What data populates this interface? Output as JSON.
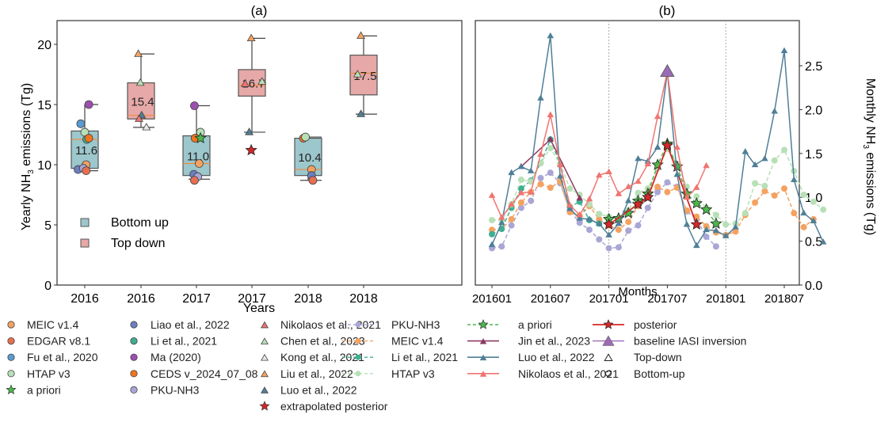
{
  "chart_data": [
    {
      "type": "box",
      "panel_label": "(a)",
      "xlabel": "Years",
      "ylabel": "Yearly NH3 emissions (Tg)",
      "ylim": [
        0,
        22
      ],
      "yticks": [
        0,
        5,
        10,
        15,
        20
      ],
      "categories": [
        "2016",
        "2016",
        "2017",
        "2017",
        "2018",
        "2018"
      ],
      "legend": {
        "placement": "center-left",
        "entries": [
          {
            "label": "Bottom up",
            "color": "#9cc7cc"
          },
          {
            "label": "Top down",
            "color": "#e7a8a8"
          }
        ]
      },
      "boxes": [
        {
          "category": "2016",
          "group": "Bottom up",
          "q1": 9.7,
          "median": 12.1,
          "q3": 12.8,
          "whisker_low": 9.5,
          "whisker_high": 15.0,
          "mean_label": "11.6"
        },
        {
          "category": "2016",
          "group": "Top down",
          "q1": 13.8,
          "median": 14.1,
          "q3": 16.8,
          "whisker_low": 13.1,
          "whisker_high": 19.2,
          "mean_label": "15.4"
        },
        {
          "category": "2017",
          "group": "Bottom up",
          "q1": 9.1,
          "median": 10.1,
          "q3": 12.4,
          "whisker_low": 8.8,
          "whisker_high": 14.9,
          "mean_label": "11.0"
        },
        {
          "category": "2017",
          "group": "Top down",
          "q1": 15.7,
          "median": 16.6,
          "q3": 17.9,
          "whisker_low": 12.7,
          "whisker_high": 20.5,
          "mean_label": "16.7"
        },
        {
          "category": "2018",
          "group": "Bottom up",
          "q1": 9.1,
          "median": 9.6,
          "q3": 12.2,
          "whisker_low": 8.7,
          "whisker_high": 12.3,
          "mean_label": "10.4"
        },
        {
          "category": "2018",
          "group": "Top down",
          "q1": 15.8,
          "median": 17.6,
          "q3": 19.1,
          "whisker_low": 14.2,
          "whisker_high": 20.7,
          "mean_label": "17.5"
        }
      ],
      "points": [
        {
          "box": 0,
          "source": "Fu et al., 2020",
          "value": 13.4,
          "dx": -0.3
        },
        {
          "box": 0,
          "source": "Ma (2020)",
          "value": 15.0,
          "dx": 0.3
        },
        {
          "box": 0,
          "source": "HTAP v3",
          "value": 12.7,
          "dx": 0.0
        },
        {
          "box": 0,
          "source": "Li et al., 2021",
          "value": 12.1,
          "dx": 0.15
        },
        {
          "box": 0,
          "source": "CEDS v_2024_07_08",
          "value": 12.2,
          "dx": 0.3
        },
        {
          "box": 0,
          "source": "MEIC v1.4",
          "value": 10.0,
          "dx": 0.1
        },
        {
          "box": 0,
          "source": "Liao et al., 2022",
          "value": 9.6,
          "dx": -0.5
        },
        {
          "box": 0,
          "source": "PKU-NH3",
          "value": 9.7,
          "dx": -0.1
        },
        {
          "box": 0,
          "source": "EDGAR v8.1",
          "value": 9.5,
          "dx": 0.1
        },
        {
          "box": 1,
          "source": "Liu et al., 2022",
          "value": 19.2,
          "dx": -0.2
        },
        {
          "box": 1,
          "source": "Chen et al., 2023",
          "value": 16.8,
          "dx": -0.05
        },
        {
          "box": 1,
          "source": "Luo et al., 2022",
          "value": 14.1,
          "dx": 0.05
        },
        {
          "box": 1,
          "source": "Nikolaos et al., 2021",
          "value": 13.8,
          "dx": -0.15
        },
        {
          "box": 1,
          "source": "Kong et al., 2021",
          "value": 13.1,
          "dx": 0.4
        },
        {
          "box": 2,
          "source": "Ma (2020)",
          "value": 14.9,
          "dx": -0.15
        },
        {
          "box": 2,
          "source": "HTAP v3",
          "value": 12.7,
          "dx": 0.3
        },
        {
          "box": 2,
          "source": "CEDS v_2024_07_08",
          "value": 12.2,
          "dx": -0.1
        },
        {
          "box": 2,
          "source": "a priori",
          "value": 12.2,
          "dx": 0.3
        },
        {
          "box": 2,
          "source": "MEIC v1.4",
          "value": 10.1,
          "dx": 0.2
        },
        {
          "box": 2,
          "source": "Liao et al., 2022",
          "value": 9.2,
          "dx": -0.2
        },
        {
          "box": 2,
          "source": "PKU-NH3",
          "value": 9.0,
          "dx": 0.1
        },
        {
          "box": 2,
          "source": "EDGAR v8.1",
          "value": 8.7,
          "dx": -0.15
        },
        {
          "box": 3,
          "source": "Liu et al., 2022",
          "value": 20.5,
          "dx": -0.05
        },
        {
          "box": 3,
          "source": "Nikolaos et al., 2021",
          "value": 16.7,
          "dx": -0.5
        },
        {
          "box": 3,
          "source": "Chen et al., 2023",
          "value": 16.9,
          "dx": 0.75
        },
        {
          "box": 3,
          "source": "Luo et al., 2022",
          "value": 12.7,
          "dx": -0.2
        },
        {
          "box": 3,
          "source": "extrapolated posterior",
          "value": 11.2,
          "dx": -0.05
        },
        {
          "box": 4,
          "source": "CEDS v_2024_07_08",
          "value": 12.2,
          "dx": -0.35
        },
        {
          "box": 4,
          "source": "HTAP v3",
          "value": 12.3,
          "dx": -0.2
        },
        {
          "box": 4,
          "source": "MEIC v1.4",
          "value": 9.6,
          "dx": 0.25
        },
        {
          "box": 4,
          "source": "Liao et al., 2022",
          "value": 9.1,
          "dx": 0.25
        },
        {
          "box": 4,
          "source": "EDGAR v8.1",
          "value": 8.7,
          "dx": 0.35
        },
        {
          "box": 5,
          "source": "Liu et al., 2022",
          "value": 20.7,
          "dx": -0.2
        },
        {
          "box": 5,
          "source": "Chen et al., 2023",
          "value": 17.5,
          "dx": -0.45
        },
        {
          "box": 5,
          "source": "Luo et al., 2022",
          "value": 14.2,
          "dx": -0.2
        }
      ]
    },
    {
      "type": "line",
      "panel_label": "(b)",
      "xlabel": "Months",
      "ylabel": "Monthly NH3 emissions (Tg)",
      "y_axis_side": "right",
      "ylim": [
        0,
        2.95
      ],
      "yticks": [
        "0.0",
        "0.5",
        "1.0",
        "1.5",
        "2.0",
        "2.5"
      ],
      "xticks": [
        "201601",
        "201607",
        "201701",
        "201707",
        "201801",
        "201807"
      ],
      "month_index_range": [
        0,
        35
      ],
      "vlines_at": [
        12,
        24
      ],
      "series": [
        {
          "name": "PKU-NH3",
          "style": "dashed-circle",
          "color": "#a9a6d6",
          "start": 0,
          "values": [
            0.42,
            0.44,
            0.68,
            0.88,
            0.96,
            1.22,
            1.28,
            1.16,
            0.85,
            0.71,
            0.63,
            0.52,
            0.42,
            0.43,
            0.62,
            0.68,
            0.88,
            1.06,
            1.17,
            1.12,
            0.84,
            0.75,
            0.55,
            0.44
          ]
        },
        {
          "name": "MEIC v1.4",
          "style": "dashed-circle",
          "color": "#f4a261",
          "start": 0,
          "values": [
            0.63,
            0.64,
            0.75,
            0.94,
            1.06,
            1.15,
            1.11,
            1.18,
            0.83,
            0.79,
            0.9,
            0.75,
            0.68,
            0.63,
            0.72,
            0.9,
            1.0,
            1.12,
            1.06,
            1.11,
            0.85,
            0.78,
            0.67,
            0.6,
            0.57,
            0.61,
            0.8,
            0.94,
            1.07,
            1.02,
            1.1,
            0.82,
            0.66,
            0.75
          ]
        },
        {
          "name": "Li et al., 2021",
          "style": "dashed-circle",
          "color": "#3fae91",
          "start": 0,
          "values": [
            0.58,
            0.64,
            0.88,
            1.1,
            1.19,
            1.39,
            1.66,
            1.38,
            0.89,
            0.95,
            0.74,
            0.7
          ]
        },
        {
          "name": "HTAP v3",
          "style": "dashed-circle",
          "color": "#b7e0b7",
          "start": 0,
          "values": [
            0.74,
            0.74,
            0.92,
            1.2,
            1.18,
            1.39,
            1.56,
            1.38,
            1.1,
            1.03,
            0.92,
            0.81,
            0.78,
            0.76,
            0.85,
            1.05,
            1.1,
            1.33,
            1.55,
            1.38,
            1.12,
            1.01,
            0.88,
            0.8,
            0.69,
            0.7,
            0.82,
            1.16,
            1.13,
            1.42,
            1.54,
            1.3,
            1.03,
            0.95,
            0.86
          ]
        },
        {
          "name": "a priori",
          "style": "dashed-star",
          "color": "#4cb84c",
          "start": 12,
          "values": [
            0.75,
            0.76,
            0.82,
            0.96,
            1.04,
            1.37,
            1.61,
            1.35,
            1.04,
            0.93,
            0.86,
            0.7
          ]
        },
        {
          "name": "posterior",
          "style": "solid-star",
          "color": "#d62728",
          "start": 12,
          "values": [
            0.69,
            null,
            null,
            0.92,
            1.0,
            null,
            1.59,
            null,
            null,
            0.69
          ]
        },
        {
          "name": "Jin et al., 2023",
          "style": "solid-triangle",
          "color": "#8c3a62",
          "start": 0,
          "values": [
            null,
            null,
            null,
            1.35,
            null,
            null,
            1.66,
            null,
            null,
            0.99
          ]
        },
        {
          "name": "Luo et al., 2022",
          "style": "solid-triangle",
          "color": "#4f7f97",
          "start": 0,
          "values": [
            0.46,
            0.71,
            1.28,
            1.35,
            1.3,
            2.13,
            2.84,
            1.24,
            0.87,
            0.76,
            0.75,
            0.7,
            0.57,
            0.7,
            0.96,
            1.44,
            1.41,
            1.57,
            2.43,
            1.26,
            0.69,
            0.45,
            0.63,
            0.62,
            0.56,
            0.66,
            1.52,
            1.37,
            1.44,
            1.98,
            2.67,
            1.2,
            0.82,
            0.73,
            0.49
          ]
        },
        {
          "name": "Nikolaos et al., 2021",
          "style": "solid-triangle",
          "color": "#f07470",
          "start": 0,
          "values": [
            1.02,
            0.77,
            0.92,
            1.05,
            1.06,
            1.49,
            1.94,
            1.37,
            0.91,
            0.8,
            0.98,
            1.25,
            1.29,
            1.04,
            1.12,
            1.18,
            1.38,
            1.92,
            2.43,
            1.57,
            1.0,
            1.11,
            1.36
          ]
        },
        {
          "name": "baseline IASI inversion",
          "style": "triangle-marker",
          "color": "#9b6bb5",
          "start": 18,
          "values": [
            2.43
          ]
        }
      ],
      "legend_placement": "below"
    }
  ],
  "legend": {
    "col1": [
      {
        "label": "MEIC v1.4",
        "marker": "circle",
        "color": "#f4a261"
      },
      {
        "label": "EDGAR v8.1",
        "marker": "circle",
        "color": "#e76f51"
      },
      {
        "label": "Fu et al., 2020",
        "marker": "circle",
        "color": "#5b9bd0"
      },
      {
        "label": "HTAP v3",
        "marker": "circle",
        "color": "#b7e0b7"
      },
      {
        "label": "a priori",
        "marker": "star",
        "color": "#4cb84c"
      }
    ],
    "col2": [
      {
        "label": "Liao et al., 2022",
        "marker": "circle",
        "color": "#6a7fbf"
      },
      {
        "label": "Li et al., 2021",
        "marker": "circle",
        "color": "#3fae91"
      },
      {
        "label": "Ma (2020)",
        "marker": "circle",
        "color": "#9d4fb0"
      },
      {
        "label": "CEDS v_2024_07_08",
        "marker": "circle",
        "color": "#f0741e"
      },
      {
        "label": "PKU-NH3",
        "marker": "circle",
        "color": "#a9a6d6"
      }
    ],
    "col3": [
      {
        "label": "Nikolaos  et al., 2021",
        "marker": "triangle",
        "color": "#f07470"
      },
      {
        "label": "Chen et al., 2023",
        "marker": "triangle",
        "color": "#b7e0b7"
      },
      {
        "label": "Kong  et al., 2021",
        "marker": "triangle",
        "color": "#e8e8e8"
      },
      {
        "label": "Liu et al., 2022",
        "marker": "triangle",
        "color": "#f4a261"
      },
      {
        "label": "Luo et al., 2022",
        "marker": "triangle",
        "color": "#4f7f97"
      },
      {
        "label": "extrapolated posterior",
        "marker": "star",
        "color": "#d62728"
      }
    ],
    "col4": [
      {
        "label": "PKU-NH3",
        "marker": "dashed-circle",
        "color": "#a9a6d6"
      },
      {
        "label": "MEIC v1.4",
        "marker": "dashed-circle",
        "color": "#f4a261"
      },
      {
        "label": "Li et al., 2021",
        "marker": "dashed-circle",
        "color": "#3fae91"
      },
      {
        "label": "HTAP v3",
        "marker": "dashed-circle",
        "color": "#b7e0b7"
      }
    ],
    "col5": [
      {
        "label": "a priori",
        "marker": "dashed-star",
        "color": "#4cb84c"
      },
      {
        "label": "Jin et al., 2023",
        "marker": "line-triangle",
        "color": "#8c3a62"
      },
      {
        "label": "Luo et al., 2022",
        "marker": "line-triangle",
        "color": "#4f7f97"
      },
      {
        "label": "Nikolaos et al., 2021",
        "marker": "line-triangle",
        "color": "#f07470"
      }
    ],
    "col6": [
      {
        "label": "posterior",
        "marker": "line-star",
        "color": "#d62728"
      },
      {
        "label": "baseline IASI inversion",
        "marker": "line-big-triangle",
        "color": "#9b6bb5"
      },
      {
        "label": "Top-down",
        "marker": "open-triangle",
        "color": "#222222"
      },
      {
        "label": "Bottom-up",
        "marker": "open-circle",
        "color": "#222222"
      }
    ]
  },
  "source_colors": {
    "MEIC v1.4": "#f4a261",
    "EDGAR v8.1": "#e76f51",
    "Fu et al., 2020": "#5b9bd0",
    "HTAP v3": "#b7e0b7",
    "a priori": "#4cb84c",
    "Liao et al., 2022": "#6a7fbf",
    "Li et al., 2021": "#3fae91",
    "Ma (2020)": "#9d4fb0",
    "CEDS v_2024_07_08": "#f0741e",
    "PKU-NH3": "#a9a6d6",
    "Nikolaos et al., 2021": "#f07470",
    "Chen et al., 2023": "#b7e0b7",
    "Kong et al., 2021": "#e8e8e8",
    "Liu et al., 2022": "#f4a261",
    "Luo et al., 2022": "#4f7f97",
    "extrapolated posterior": "#d62728"
  },
  "topdown_sources": [
    "Nikolaos et al., 2021",
    "Chen et al., 2023",
    "Kong et al., 2021",
    "Liu et al., 2022",
    "Luo et al., 2022"
  ]
}
